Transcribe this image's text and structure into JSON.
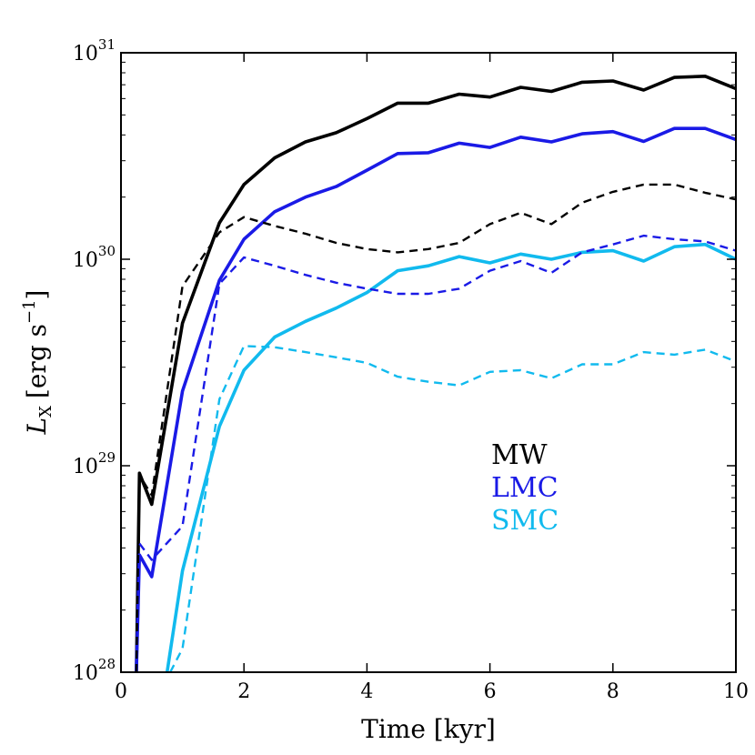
{
  "chart_data": {
    "type": "line",
    "title": "",
    "xlabel": "Time [kyr]",
    "ylabel": "L_X [erg s^-1]",
    "ylabel_parts": {
      "symbol": "L",
      "subscript": "X",
      "unit": "[erg s",
      "exponent": "−1",
      "close": "]"
    },
    "xlim": [
      0,
      10
    ],
    "ylim": [
      1e+28,
      1e+31
    ],
    "yscale": "log",
    "xticks": [
      0,
      2,
      4,
      6,
      8,
      10
    ],
    "xtick_labels": [
      "0",
      "2",
      "4",
      "6",
      "8",
      "10"
    ],
    "yticks": [
      {
        "value": 1e+28,
        "base": "10",
        "exp": "28"
      },
      {
        "value": 1e+29,
        "base": "10",
        "exp": "29"
      },
      {
        "value": 1e+30,
        "base": "10",
        "exp": "30"
      },
      {
        "value": 1e+31,
        "base": "10",
        "exp": "31"
      }
    ],
    "legend": {
      "position": "center-right",
      "entries": [
        {
          "label": "MW",
          "color": "#000000"
        },
        {
          "label": "LMC",
          "color": "#1a1ae6"
        },
        {
          "label": "SMC",
          "color": "#11baee"
        }
      ]
    },
    "series": [
      {
        "name": "MW",
        "style": "solid",
        "color": "#000000",
        "x": [
          0.25,
          0.3,
          0.5,
          1.0,
          1.6,
          2.0,
          2.5,
          3.0,
          3.5,
          4.0,
          4.5,
          5.0,
          5.5,
          6.0,
          6.5,
          7.0,
          7.5,
          8.0,
          8.5,
          9.0,
          9.5,
          10.0
        ],
        "y": [
          1e+28,
          9.2e+28,
          6.5e+28,
          4.9e+29,
          1.5e+30,
          2.3e+30,
          3.1e+30,
          3.7e+30,
          4.1e+30,
          4.8e+30,
          5.7e+30,
          5.7e+30,
          6.3e+30,
          6.1e+30,
          6.8e+30,
          6.5e+30,
          7.2e+30,
          7.3e+30,
          6.6e+30,
          7.6e+30,
          7.7e+30,
          6.7e+30
        ]
      },
      {
        "name": "LMC",
        "style": "solid",
        "color": "#1a1ae6",
        "x": [
          0.25,
          0.3,
          0.5,
          1.0,
          1.6,
          2.0,
          2.5,
          3.0,
          3.5,
          4.0,
          4.5,
          5.0,
          5.5,
          6.0,
          6.5,
          7.0,
          7.5,
          8.0,
          8.5,
          9.0,
          9.5,
          10.0
        ],
        "y": [
          1e+28,
          3.7e+28,
          2.9e+28,
          2.3e+29,
          7.9e+29,
          1.25e+30,
          1.7e+30,
          2e+30,
          2.25e+30,
          2.7e+30,
          3.25e+30,
          3.28e+30,
          3.65e+30,
          3.48e+30,
          3.9e+30,
          3.7e+30,
          4.05e+30,
          4.15e+30,
          3.72e+30,
          4.3e+30,
          4.3e+30,
          3.8e+30
        ]
      },
      {
        "name": "SMC",
        "style": "solid",
        "color": "#11baee",
        "x": [
          0.75,
          1.0,
          1.6,
          2.0,
          2.5,
          3.0,
          3.5,
          4.0,
          4.5,
          5.0,
          5.5,
          6.0,
          6.5,
          7.0,
          7.5,
          8.0,
          8.5,
          9.0,
          9.5,
          10.0
        ],
        "y": [
          1e+28,
          3.1e+28,
          1.55e+29,
          2.9e+29,
          4.2e+29,
          5e+29,
          5.8e+29,
          6.9e+29,
          8.8e+29,
          9.3e+29,
          1.03e+30,
          9.6e+29,
          1.06e+30,
          1e+30,
          1.08e+30,
          1.1e+30,
          9.8e+29,
          1.15e+30,
          1.18e+30,
          1e+30
        ]
      },
      {
        "name": "MW (dashed)",
        "style": "dashed",
        "color": "#000000",
        "x": [
          0.25,
          0.3,
          0.5,
          1.0,
          1.6,
          2.0,
          2.5,
          3.0,
          3.5,
          4.0,
          4.5,
          5.0,
          5.5,
          6.0,
          6.5,
          7.0,
          7.5,
          8.0,
          8.5,
          9.0,
          9.5,
          10.0
        ],
        "y": [
          1e+28,
          9e+28,
          7.2e+28,
          7.4e+29,
          1.35e+30,
          1.6e+30,
          1.45e+30,
          1.33e+30,
          1.2e+30,
          1.12e+30,
          1.08e+30,
          1.12e+30,
          1.2e+30,
          1.48e+30,
          1.68e+30,
          1.48e+30,
          1.88e+30,
          2.12e+30,
          2.3e+30,
          2.3e+30,
          2.1e+30,
          1.95e+30
        ]
      },
      {
        "name": "LMC (dashed)",
        "style": "dashed",
        "color": "#1a1ae6",
        "x": [
          0.3,
          0.5,
          1.0,
          1.6,
          2.0,
          2.5,
          3.0,
          3.5,
          4.0,
          4.5,
          5.0,
          5.5,
          6.0,
          6.5,
          7.0,
          7.5,
          8.0,
          8.5,
          9.0,
          9.5,
          10.0
        ],
        "y": [
          4.2e+28,
          3.5e+28,
          5.1e+28,
          7.6e+29,
          1.02e+30,
          9.3e+29,
          8.4e+29,
          7.7e+29,
          7.2e+29,
          6.8e+29,
          6.8e+29,
          7.2e+29,
          8.8e+29,
          9.8e+29,
          8.6e+29,
          1.08e+30,
          1.18e+30,
          1.3e+30,
          1.25e+30,
          1.22e+30,
          1.1e+30
        ]
      },
      {
        "name": "SMC (dashed)",
        "style": "dashed",
        "color": "#11baee",
        "x": [
          0.8,
          1.0,
          1.6,
          2.0,
          2.5,
          3.0,
          3.5,
          4.0,
          4.5,
          5.0,
          5.5,
          6.0,
          6.5,
          7.0,
          7.5,
          8.0,
          8.5,
          9.0,
          9.5,
          10.0
        ],
        "y": [
          1e+28,
          1.3e+28,
          2.1e+29,
          3.8e+29,
          3.75e+29,
          3.55e+29,
          3.35e+29,
          3.15e+29,
          2.7e+29,
          2.55e+29,
          2.45e+29,
          2.85e+29,
          2.9e+29,
          2.65e+29,
          3.1e+29,
          3.1e+29,
          3.55e+29,
          3.45e+29,
          3.65e+29,
          3.2e+29
        ]
      }
    ]
  }
}
